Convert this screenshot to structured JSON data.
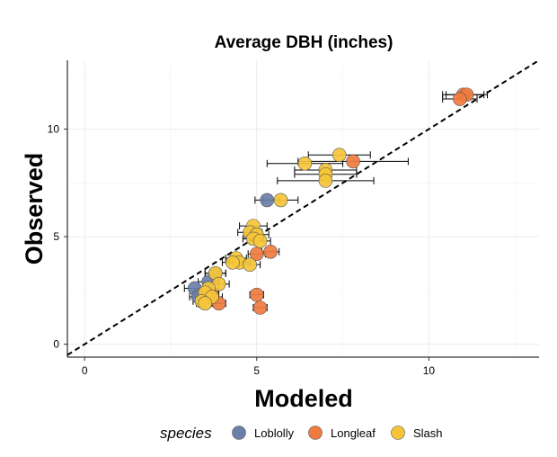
{
  "chart_data": {
    "type": "scatter",
    "title": "Average DBH (inches)",
    "xlabel": "Modeled",
    "ylabel": "Observed",
    "xlim": [
      -0.5,
      13.2
    ],
    "ylim": [
      -0.6,
      13.2
    ],
    "x_ticks": [
      "0",
      "5",
      "10"
    ],
    "y_ticks": [
      "0",
      "5",
      "10"
    ],
    "grid": true,
    "reference_line": "1:1 dashed",
    "legend": {
      "title": "species",
      "position": "bottom"
    },
    "colors": {
      "Loblolly": "#6b7fa8",
      "Longleaf": "#f07b3f",
      "Slash": "#f5c538"
    },
    "series": [
      {
        "name": "Loblolly",
        "points": [
          {
            "x": 5.3,
            "y": 6.7,
            "xerr": 0.35
          },
          {
            "x": 3.2,
            "y": 2.6,
            "xerr": 0.3
          },
          {
            "x": 3.3,
            "y": 2.2,
            "xerr": 0.25
          },
          {
            "x": 3.6,
            "y": 2.9,
            "xerr": 0.3
          },
          {
            "x": 3.8,
            "y": 3.3,
            "xerr": 0.3
          }
        ]
      },
      {
        "name": "Longleaf",
        "points": [
          {
            "x": 11.0,
            "y": 11.6,
            "xerr": 0.6
          },
          {
            "x": 11.1,
            "y": 11.6,
            "xerr": 0.6
          },
          {
            "x": 10.9,
            "y": 11.4,
            "xerr": 0.5
          },
          {
            "x": 7.8,
            "y": 8.5,
            "xerr": 1.6
          },
          {
            "x": 5.0,
            "y": 4.2,
            "xerr": 0.25
          },
          {
            "x": 5.4,
            "y": 4.3,
            "xerr": 0.25
          },
          {
            "x": 5.0,
            "y": 2.3,
            "xerr": 0.2
          },
          {
            "x": 5.1,
            "y": 1.7,
            "xerr": 0.2
          },
          {
            "x": 3.9,
            "y": 1.9,
            "xerr": 0.2
          },
          {
            "x": 3.7,
            "y": 2.3,
            "xerr": 0.2
          }
        ]
      },
      {
        "name": "Slash",
        "points": [
          {
            "x": 7.4,
            "y": 8.8,
            "xerr": 0.9
          },
          {
            "x": 6.4,
            "y": 8.4,
            "xerr": 1.1
          },
          {
            "x": 7.0,
            "y": 8.1,
            "xerr": 0.9
          },
          {
            "x": 7.0,
            "y": 7.9,
            "xerr": 0.9
          },
          {
            "x": 7.0,
            "y": 7.6,
            "xerr": 1.4
          },
          {
            "x": 5.7,
            "y": 6.7,
            "xerr": 0.5
          },
          {
            "x": 4.9,
            "y": 5.5,
            "xerr": 0.4
          },
          {
            "x": 4.8,
            "y": 5.2,
            "xerr": 0.35
          },
          {
            "x": 5.0,
            "y": 5.1,
            "xerr": 0.35
          },
          {
            "x": 4.9,
            "y": 4.9,
            "xerr": 0.3
          },
          {
            "x": 5.1,
            "y": 4.8,
            "xerr": 0.3
          },
          {
            "x": 4.4,
            "y": 4.0,
            "xerr": 0.3
          },
          {
            "x": 4.5,
            "y": 3.8,
            "xerr": 0.3
          },
          {
            "x": 4.3,
            "y": 3.8,
            "xerr": 0.3
          },
          {
            "x": 4.8,
            "y": 3.7,
            "xerr": 0.3
          },
          {
            "x": 3.8,
            "y": 3.3,
            "xerr": 0.3
          },
          {
            "x": 3.9,
            "y": 2.8,
            "xerr": 0.3
          },
          {
            "x": 3.6,
            "y": 2.6,
            "xerr": 0.3
          },
          {
            "x": 3.5,
            "y": 2.4,
            "xerr": 0.3
          },
          {
            "x": 3.7,
            "y": 2.2,
            "xerr": 0.3
          },
          {
            "x": 3.4,
            "y": 2.0,
            "xerr": 0.25
          },
          {
            "x": 3.5,
            "y": 1.9,
            "xerr": 0.25
          }
        ]
      }
    ]
  }
}
